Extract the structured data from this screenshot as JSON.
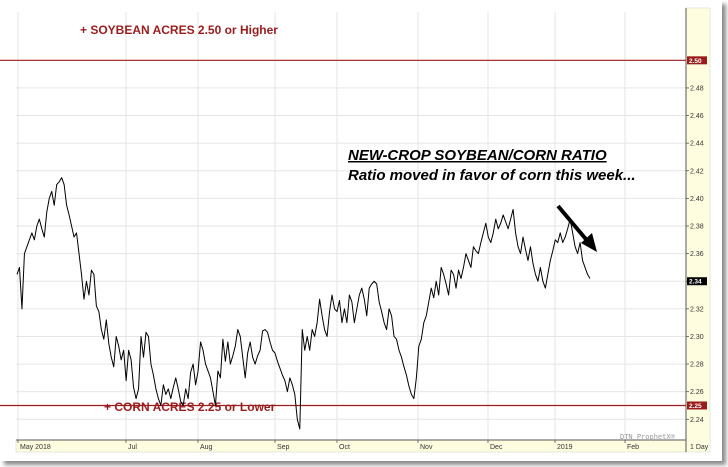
{
  "chart_data": {
    "type": "line",
    "title": "",
    "xlabel": "",
    "ylabel": "",
    "ylim": [
      2.225,
      2.535
    ],
    "y_ticks": [
      2.24,
      2.26,
      2.28,
      2.3,
      2.32,
      2.34,
      2.36,
      2.38,
      2.4,
      2.42,
      2.44,
      2.46,
      2.48
    ],
    "x_ticks": [
      "May 2018",
      "Jul",
      "Aug",
      "Sep",
      "Oct",
      "Nov",
      "Dec",
      "2019",
      "Feb",
      "1 Day"
    ],
    "grid": true,
    "series": [
      {
        "values": [
          2.345,
          2.35,
          2.32,
          2.36,
          2.365,
          2.37,
          2.375,
          2.37,
          2.38,
          2.385,
          2.378,
          2.372,
          2.39,
          2.4,
          2.405,
          2.395,
          2.41,
          2.412,
          2.415,
          2.41,
          2.395,
          2.388,
          2.38,
          2.372,
          2.375,
          2.36,
          2.345,
          2.327,
          2.34,
          2.33,
          2.348,
          2.345,
          2.322,
          2.318,
          2.305,
          2.298,
          2.312,
          2.295,
          2.285,
          2.278,
          2.3,
          2.293,
          2.283,
          2.29,
          2.268,
          2.29,
          2.283,
          2.263,
          2.255,
          2.262,
          2.3,
          2.285,
          2.303,
          2.3,
          2.28,
          2.272,
          2.262,
          2.255,
          2.25,
          2.265,
          2.258,
          2.262,
          2.255,
          2.263,
          2.27,
          2.262,
          2.253,
          2.25,
          2.262,
          2.255,
          2.274,
          2.28,
          2.265,
          2.275,
          2.296,
          2.29,
          2.28,
          2.275,
          2.27,
          2.26,
          2.25,
          2.275,
          2.27,
          2.298,
          2.282,
          2.296,
          2.28,
          2.286,
          2.293,
          2.305,
          2.3,
          2.285,
          2.27,
          2.288,
          2.296,
          2.285,
          2.28,
          2.286,
          2.29,
          2.304,
          2.305,
          2.303,
          2.296,
          2.29,
          2.288,
          2.282,
          2.277,
          2.272,
          2.268,
          2.26,
          2.27,
          2.265,
          2.258,
          2.24,
          2.233,
          2.305,
          2.29,
          2.3,
          2.29,
          2.305,
          2.3,
          2.31,
          2.327,
          2.315,
          2.305,
          2.3,
          2.318,
          2.33,
          2.32,
          2.318,
          2.326,
          2.31,
          2.32,
          2.31,
          2.33,
          2.325,
          2.31,
          2.32,
          2.33,
          2.335,
          2.327,
          2.315,
          2.335,
          2.338,
          2.34,
          2.338,
          2.325,
          2.318,
          2.31,
          2.305,
          2.32,
          2.315,
          2.3,
          2.298,
          2.29,
          2.285,
          2.278,
          2.272,
          2.264,
          2.258,
          2.255,
          2.27,
          2.293,
          2.298,
          2.31,
          2.315,
          2.325,
          2.335,
          2.328,
          2.34,
          2.33,
          2.35,
          2.345,
          2.338,
          2.33,
          2.348,
          2.345,
          2.335,
          2.348,
          2.342,
          2.35,
          2.36,
          2.355,
          2.35,
          2.365,
          2.362,
          2.36,
          2.368,
          2.375,
          2.382,
          2.372,
          2.368,
          2.375,
          2.385,
          2.378,
          2.382,
          2.388,
          2.383,
          2.378,
          2.385,
          2.392,
          2.375,
          2.365,
          2.36,
          2.372,
          2.363,
          2.355,
          2.365,
          2.353,
          2.345,
          2.34,
          2.35,
          2.34,
          2.335,
          2.345,
          2.355,
          2.362,
          2.37,
          2.368,
          2.375,
          2.368,
          2.372,
          2.378,
          2.385,
          2.375,
          2.365,
          2.36,
          2.368,
          2.355,
          2.35,
          2.345,
          2.342
        ]
      }
    ],
    "reference_lines": [
      {
        "value": 2.5,
        "label": "+ SOYBEAN ACRES 2.50 or Higher",
        "tag": "2.50",
        "color": "#9b1c1c"
      },
      {
        "value": 2.25,
        "label": "+ CORN ACRES 2.25 or Lower",
        "tag": "2.25",
        "color": "#9b1c1c"
      }
    ],
    "last_value": {
      "value": 2.34,
      "tag": "2.34"
    },
    "annotation": {
      "title": "NEW-CROP SOYBEAN/CORN RATIO",
      "subtitle": "Ratio moved in favor of corn this week..."
    },
    "watermark": "DTN ProphetX®",
    "colors": {
      "line": "#000000",
      "reference": "#9b1c1c",
      "axis_strip": "#fffde0",
      "grid": "#e6e6e6"
    }
  }
}
